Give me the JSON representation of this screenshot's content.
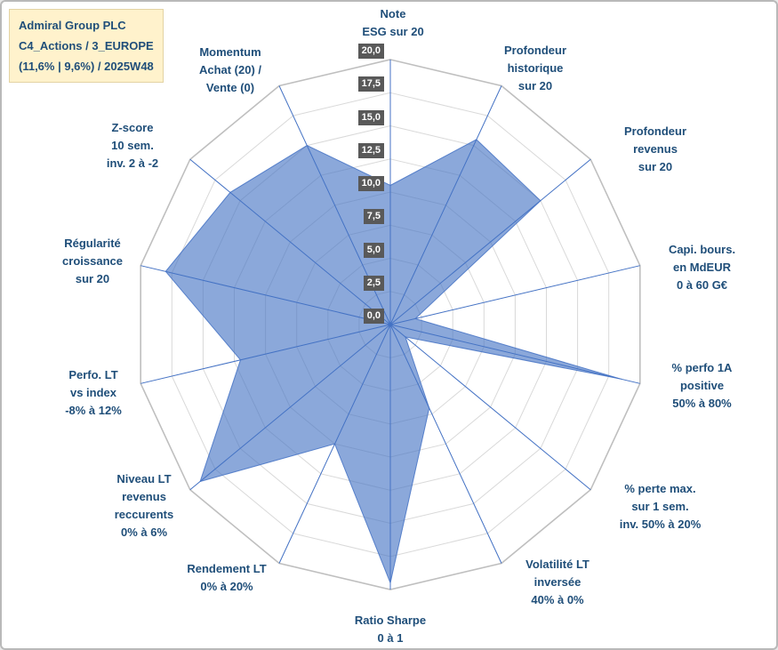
{
  "header": {
    "line1": "Admiral Group PLC",
    "line2": "C4_Actions / 3_EUROPE",
    "line3": "(11,6% | 9,6%) / 2025W48"
  },
  "chart_data": {
    "type": "radar",
    "series_name": "Admiral Group PLC",
    "scale": {
      "min": 0,
      "max": 20,
      "step": 2.5
    },
    "tick_labels": [
      "0,0",
      "2,5",
      "5,0",
      "7,5",
      "10,0",
      "12,5",
      "15,0",
      "17,5",
      "20,0"
    ],
    "grid": "on",
    "legend": "none",
    "axes": [
      {
        "id": "note-esg",
        "label": "Note\nESG sur 20",
        "value": 10.5
      },
      {
        "id": "prof-historique",
        "label": "Profondeur\nhistorique\nsur 20",
        "value": 15.5
      },
      {
        "id": "prof-revenus",
        "label": "Profondeur\nrevenus\nsur 20",
        "value": 15
      },
      {
        "id": "capi-bours",
        "label": "Capi. bours.\nen MdEUR\n0 à 60 G€",
        "value": 2
      },
      {
        "id": "perfo-1a",
        "label": "% perfo 1A\npositive\n50% à 80%",
        "value": 18.5
      },
      {
        "id": "perte-max",
        "label": "% perte max.\nsur 1 sem.\ninv. 50% à 20%",
        "value": 1.5
      },
      {
        "id": "volatilite-lt",
        "label": "Volatilité LT\ninversée\n40% à 0%",
        "value": 7
      },
      {
        "id": "ratio-sharpe",
        "label": "Ratio Sharpe\n0 à 1",
        "value": 19.5
      },
      {
        "id": "rendement-lt",
        "label": "Rendement LT\n0% à 20%",
        "value": 10
      },
      {
        "id": "niveau-lt-revenus",
        "label": "Niveau LT\nrevenus\nreccurents\n0% à 6%",
        "value": 19
      },
      {
        "id": "perfo-lt-index",
        "label": "Perfo. LT\nvs index\n-8% à 12%",
        "value": 12
      },
      {
        "id": "regularite",
        "label": "Régularité\ncroissance\nsur 20",
        "value": 18
      },
      {
        "id": "z-score",
        "label": "Z-score\n10 sem.\ninv. 2 à -2",
        "value": 16
      },
      {
        "id": "momentum",
        "label": "Momentum\nAchat (20) /\nVente (0)",
        "value": 15
      }
    ],
    "colors": {
      "fill": "#4472c4",
      "fill_opacity": 0.62,
      "series_stroke": "#4472c4",
      "spoke": "#4472c4",
      "grid": "#d9d9d9",
      "outer_ring": "#bfbfbf",
      "axis_label": "#1f4e79",
      "tick_bg": "#595959",
      "tick_text": "#ffffff"
    }
  }
}
